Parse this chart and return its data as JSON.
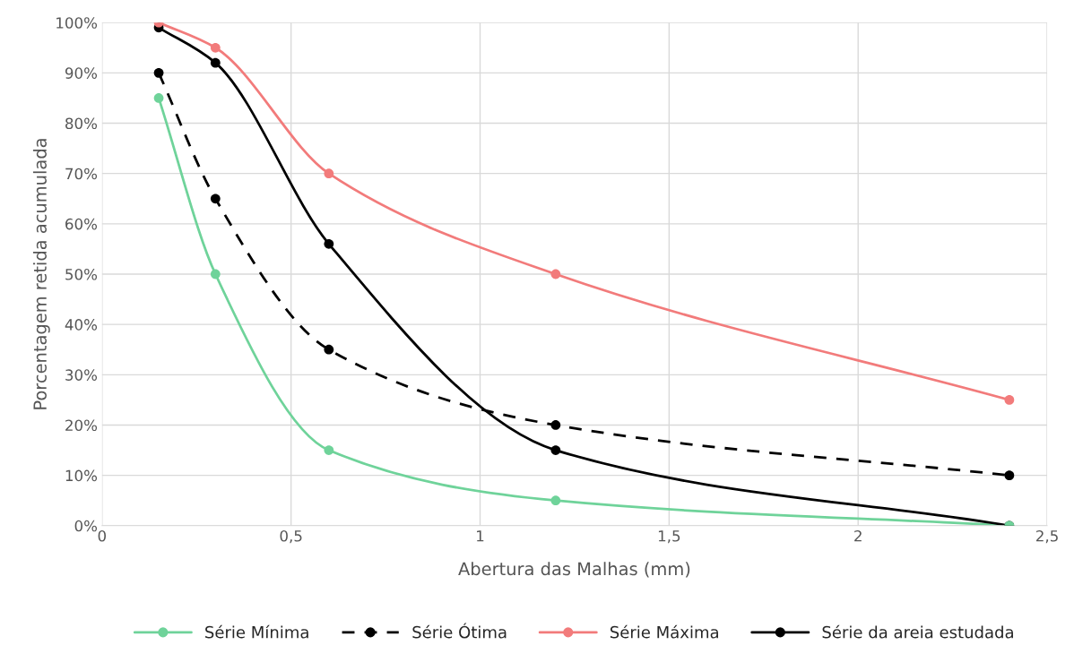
{
  "chart_data": {
    "type": "line",
    "xlabel": "Abertura das Malhas (mm)",
    "ylabel": "Porcentagem retida acumulada",
    "x": [
      0.15,
      0.3,
      0.6,
      1.2,
      2.4
    ],
    "series": [
      {
        "name": "Série Mínima",
        "color": "#6fd39a",
        "values": [
          85,
          50,
          15,
          5,
          0
        ],
        "line_style": "solid"
      },
      {
        "name": "Série Ótima",
        "color": "#000000",
        "values": [
          90,
          65,
          35,
          20,
          10
        ],
        "line_style": "dashed"
      },
      {
        "name": "Série Máxima",
        "color": "#f27b7b",
        "values": [
          100,
          95,
          70,
          50,
          25
        ],
        "line_style": "solid"
      },
      {
        "name": "Série da areia estudada",
        "color": "#000000",
        "values": [
          99,
          92,
          56,
          15,
          0
        ],
        "line_style": "solid"
      }
    ],
    "xlim": [
      0,
      2.5
    ],
    "xticks": [
      0,
      {
        "value": 0.5,
        "label": "0,5"
      },
      1,
      {
        "value": 1.5,
        "label": "1,5"
      },
      2,
      {
        "value": 2.5,
        "label": "2,5"
      }
    ],
    "ylim": [
      0,
      100
    ],
    "yticks": [
      {
        "value": 0,
        "label": "0%"
      },
      {
        "value": 10,
        "label": "10%"
      },
      {
        "value": 20,
        "label": "20%"
      },
      {
        "value": 30,
        "label": "30%"
      },
      {
        "value": 40,
        "label": "40%"
      },
      {
        "value": 50,
        "label": "50%"
      },
      {
        "value": 60,
        "label": "60%"
      },
      {
        "value": 70,
        "label": "70%"
      },
      {
        "value": 80,
        "label": "80%"
      },
      {
        "value": 90,
        "label": "90%"
      },
      {
        "value": 100,
        "label": "100%"
      }
    ],
    "grid": true,
    "legend": "bottom",
    "marker": "circle"
  }
}
